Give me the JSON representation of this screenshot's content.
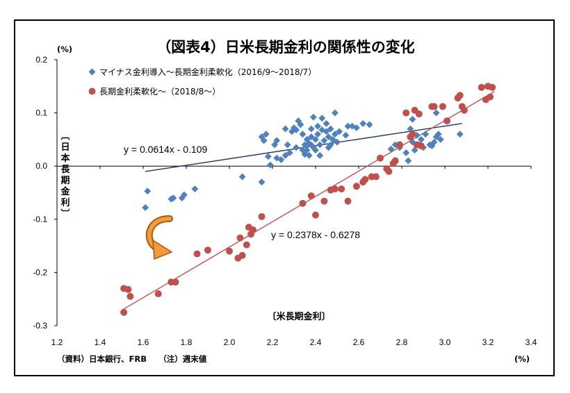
{
  "chart_data": {
    "type": "scatter",
    "title": "（図表4）日米長期金利の関係性の変化",
    "xlabel": "〔米長期金利〕",
    "ylabel": "〔日本長期金利〕",
    "x_unit": "(%)",
    "y_unit": "(%)",
    "xlim": [
      1.2,
      3.4
    ],
    "ylim": [
      -0.3,
      0.2
    ],
    "x_ticks": [
      "1.2",
      "1.4",
      "1.6",
      "1.8",
      "2.0",
      "2.2",
      "2.4",
      "2.6",
      "2.8",
      "3.0",
      "3.2",
      "3.4"
    ],
    "y_ticks": [
      "0.2",
      "0.1",
      "0.0",
      "-0.1",
      "-0.2",
      "-0.3"
    ],
    "grid": false,
    "legend_position": "top-left",
    "source_note": "（資料）日本銀行、FRB　　（注）週末値",
    "series": [
      {
        "name": "マイナス金利導入～長期金利柔軟化（2016/9～2018/7）",
        "color": "#4f81bd",
        "marker": "diamond",
        "trendline": {
          "label": "y = 0.0614x - 0.109",
          "slope": 0.0614,
          "intercept": -0.109,
          "x_range": [
            1.61,
            3.08
          ],
          "color": "#1f3864"
        },
        "points": [
          [
            1.61,
            -0.078
          ],
          [
            1.62,
            -0.047
          ],
          [
            1.73,
            -0.062
          ],
          [
            1.74,
            -0.06
          ],
          [
            1.78,
            -0.06
          ],
          [
            1.79,
            -0.054
          ],
          [
            1.84,
            -0.043
          ],
          [
            2.06,
            -0.02
          ],
          [
            2.15,
            -0.03
          ],
          [
            2.15,
            0.055
          ],
          [
            2.16,
            0.048
          ],
          [
            2.17,
            0.06
          ],
          [
            2.18,
            0.018
          ],
          [
            2.19,
            0.002
          ],
          [
            2.21,
            0.04
          ],
          [
            2.22,
            0.048
          ],
          [
            2.22,
            0.015
          ],
          [
            2.24,
            0.012
          ],
          [
            2.26,
            0.02
          ],
          [
            2.26,
            0.07
          ],
          [
            2.27,
            0.04
          ],
          [
            2.28,
            0.025
          ],
          [
            2.29,
            0.065
          ],
          [
            2.3,
            0.072
          ],
          [
            2.31,
            0.068
          ],
          [
            2.31,
            0.035
          ],
          [
            2.32,
            0.085
          ],
          [
            2.33,
            0.078
          ],
          [
            2.34,
            0.06
          ],
          [
            2.34,
            0.03
          ],
          [
            2.35,
            0.04
          ],
          [
            2.35,
            0.022
          ],
          [
            2.36,
            0.05
          ],
          [
            2.36,
            0.03
          ],
          [
            2.37,
            0.042
          ],
          [
            2.37,
            0.02
          ],
          [
            2.38,
            0.07
          ],
          [
            2.38,
            0.055
          ],
          [
            2.38,
            0.04
          ],
          [
            2.39,
            0.035
          ],
          [
            2.39,
            0.092
          ],
          [
            2.4,
            0.05
          ],
          [
            2.4,
            0.03
          ],
          [
            2.41,
            0.075
          ],
          [
            2.41,
            0.06
          ],
          [
            2.42,
            0.04
          ],
          [
            2.42,
            0.02
          ],
          [
            2.43,
            0.068
          ],
          [
            2.43,
            0.09
          ],
          [
            2.44,
            0.048
          ],
          [
            2.45,
            0.08
          ],
          [
            2.45,
            0.065
          ],
          [
            2.46,
            0.055
          ],
          [
            2.46,
            0.035
          ],
          [
            2.47,
            0.07
          ],
          [
            2.47,
            0.04
          ],
          [
            2.48,
            0.05
          ],
          [
            2.49,
            0.06
          ],
          [
            2.49,
            0.1
          ],
          [
            2.5,
            0.045
          ],
          [
            2.51,
            0.065
          ],
          [
            2.54,
            0.058
          ],
          [
            2.55,
            0.075
          ],
          [
            2.57,
            0.075
          ],
          [
            2.59,
            0.072
          ],
          [
            2.62,
            0.08
          ],
          [
            2.65,
            0.078
          ],
          [
            2.75,
            0.032
          ],
          [
            2.77,
            0.04
          ],
          [
            2.79,
            0.035
          ],
          [
            2.82,
            0.025
          ],
          [
            2.83,
            0.01
          ],
          [
            2.84,
            0.07
          ],
          [
            2.85,
            0.045
          ],
          [
            2.85,
            0.088
          ],
          [
            2.86,
            0.03
          ],
          [
            2.87,
            0.058
          ],
          [
            2.88,
            0.04
          ],
          [
            2.89,
            0.05
          ],
          [
            2.9,
            0.035
          ],
          [
            2.91,
            0.06
          ],
          [
            2.93,
            0.04
          ],
          [
            2.94,
            0.038
          ],
          [
            2.95,
            0.045
          ],
          [
            2.96,
            0.055
          ],
          [
            2.96,
            0.1
          ],
          [
            2.97,
            0.06
          ],
          [
            2.98,
            0.05
          ],
          [
            3.07,
            0.06
          ]
        ]
      },
      {
        "name": "長期金利柔軟化～（2018/8～）",
        "color": "#c0504d",
        "marker": "circle",
        "trendline": {
          "label": "y = 0.2378x - 0.6278",
          "slope": 0.2378,
          "intercept": -0.6278,
          "x_range": [
            1.51,
            3.23
          ],
          "color": "#c0504d"
        },
        "points": [
          [
            1.51,
            -0.275
          ],
          [
            1.51,
            -0.23
          ],
          [
            1.53,
            -0.232
          ],
          [
            1.54,
            -0.245
          ],
          [
            1.67,
            -0.24
          ],
          [
            1.73,
            -0.218
          ],
          [
            1.75,
            -0.218
          ],
          [
            1.85,
            -0.165
          ],
          [
            1.9,
            -0.158
          ],
          [
            2.0,
            -0.16
          ],
          [
            2.04,
            -0.173
          ],
          [
            2.05,
            -0.135
          ],
          [
            2.06,
            -0.168
          ],
          [
            2.08,
            -0.148
          ],
          [
            2.09,
            -0.115
          ],
          [
            2.1,
            -0.128
          ],
          [
            2.11,
            -0.12
          ],
          [
            2.15,
            -0.095
          ],
          [
            2.34,
            -0.07
          ],
          [
            2.38,
            -0.056
          ],
          [
            2.4,
            -0.092
          ],
          [
            2.44,
            -0.066
          ],
          [
            2.47,
            -0.045
          ],
          [
            2.49,
            -0.043
          ],
          [
            2.52,
            -0.043
          ],
          [
            2.55,
            -0.066
          ],
          [
            2.59,
            -0.038
          ],
          [
            2.62,
            -0.03
          ],
          [
            2.63,
            -0.025
          ],
          [
            2.66,
            -0.02
          ],
          [
            2.68,
            -0.02
          ],
          [
            2.7,
            0.015
          ],
          [
            2.73,
            -0.005
          ],
          [
            2.74,
            -0.01
          ],
          [
            2.76,
            0.005
          ],
          [
            2.77,
            0.01
          ],
          [
            2.79,
            0.04
          ],
          [
            2.82,
            0.1
          ],
          [
            2.84,
            0.055
          ],
          [
            2.85,
            0.06
          ],
          [
            2.86,
            0.105
          ],
          [
            2.87,
            0.04
          ],
          [
            2.88,
            0.098
          ],
          [
            2.89,
            0.038
          ],
          [
            2.94,
            0.112
          ],
          [
            2.95,
            0.112
          ],
          [
            2.99,
            0.112
          ],
          [
            3.01,
            0.085
          ],
          [
            3.06,
            0.128
          ],
          [
            3.07,
            0.133
          ],
          [
            3.08,
            0.112
          ],
          [
            3.09,
            0.105
          ],
          [
            3.17,
            0.148
          ],
          [
            3.19,
            0.125
          ],
          [
            3.2,
            0.15
          ],
          [
            3.21,
            0.13
          ],
          [
            3.22,
            0.148
          ]
        ]
      }
    ]
  }
}
